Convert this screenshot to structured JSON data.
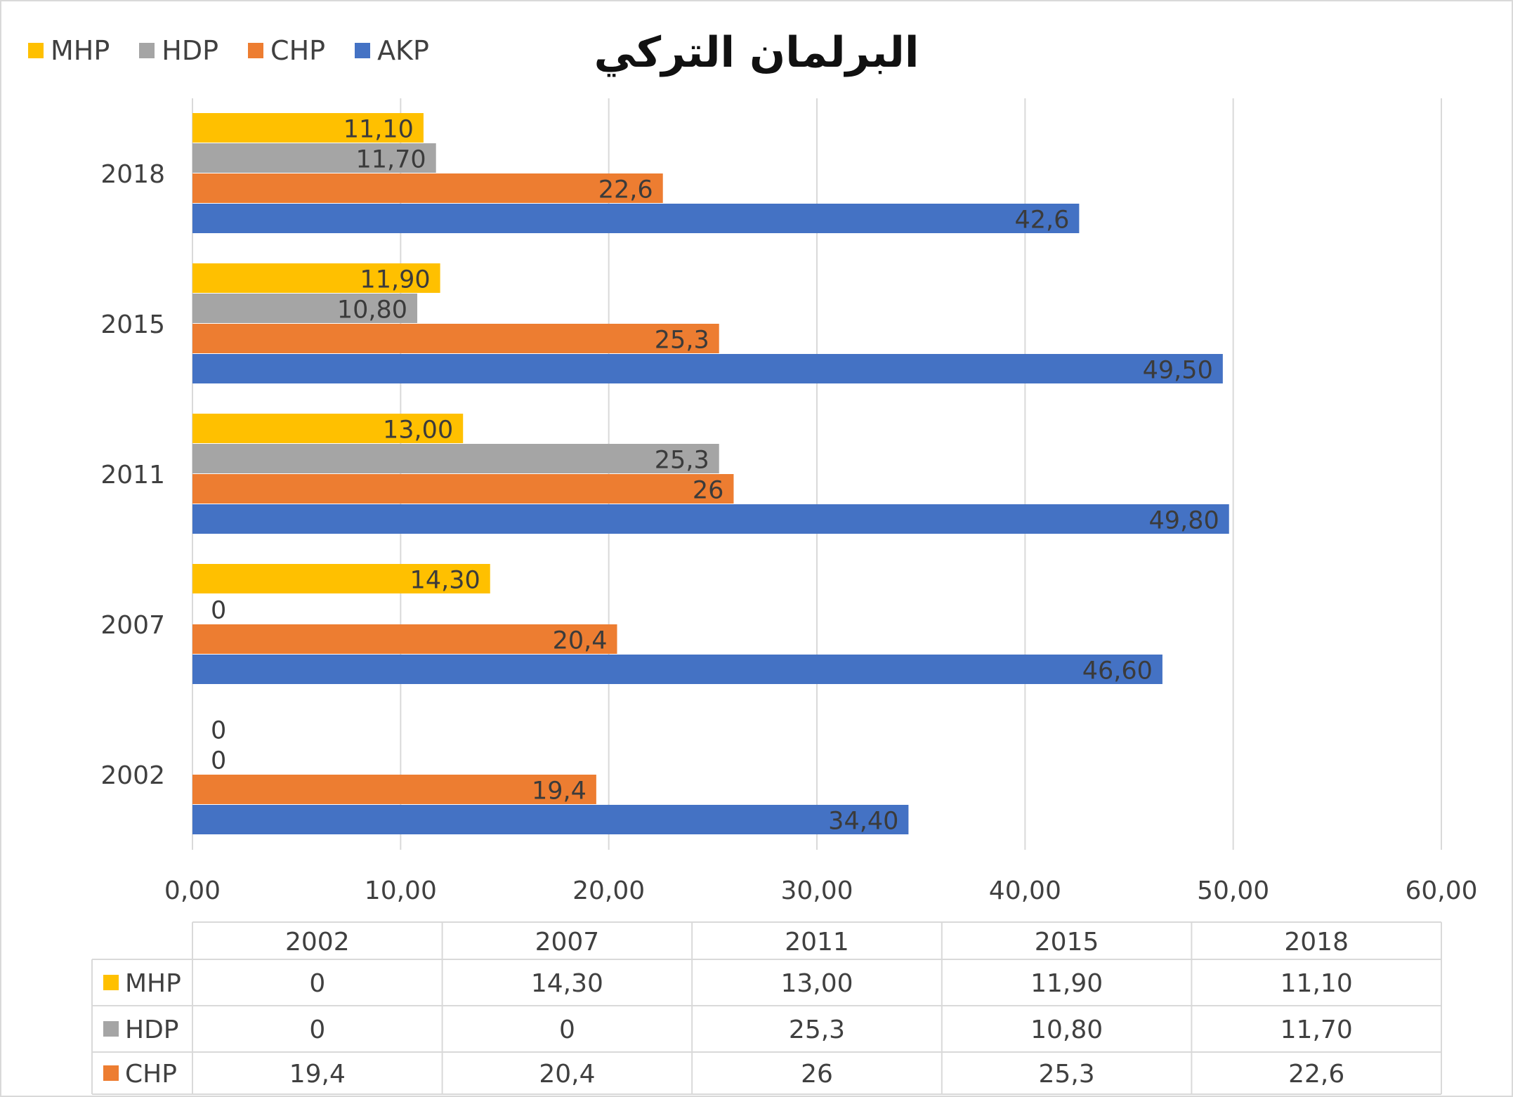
{
  "chart_data": {
    "type": "bar",
    "orientation": "horizontal",
    "title": "البرلمان التركي",
    "categories": [
      "2002",
      "2007",
      "2011",
      "2015",
      "2018"
    ],
    "series": [
      {
        "name": "AKP",
        "color": "#4472c4",
        "values": [
          34.4,
          46.6,
          49.8,
          49.5,
          42.6
        ],
        "labels": [
          "34,40",
          "46,60",
          "49,80",
          "49,50",
          "42,6"
        ]
      },
      {
        "name": "CHP",
        "color": "#ed7d31",
        "values": [
          19.4,
          20.4,
          26,
          25.3,
          22.6
        ],
        "labels": [
          "19,4",
          "20,4",
          "26",
          "25,3",
          "22,6"
        ]
      },
      {
        "name": "HDP",
        "color": "#a5a5a5",
        "values": [
          0,
          0,
          25.3,
          10.8,
          11.7
        ],
        "labels": [
          "0",
          "0",
          "25,3",
          "10,80",
          "11,70"
        ]
      },
      {
        "name": "MHP",
        "color": "#ffc000",
        "values": [
          0,
          14.3,
          13.0,
          11.9,
          11.1
        ],
        "labels": [
          "0",
          "14,30",
          "13,00",
          "11,90",
          "11,10"
        ]
      }
    ],
    "xlim": [
      0,
      60
    ],
    "x_ticks": [
      "0,00",
      "10,00",
      "20,00",
      "30,00",
      "40,00",
      "50,00",
      "60,00"
    ],
    "grid": true,
    "legend_position": "top-left",
    "data_table": {
      "header": [
        "2002",
        "2007",
        "2011",
        "2015",
        "2018"
      ],
      "rows": [
        {
          "name": "MHP",
          "color": "#ffc000",
          "cells": [
            "0",
            "14,30",
            "13,00",
            "11,90",
            "11,10"
          ]
        },
        {
          "name": "HDP",
          "color": "#a5a5a5",
          "cells": [
            "0",
            "0",
            "25,3",
            "10,80",
            "11,70"
          ]
        },
        {
          "name": "CHP",
          "color": "#ed7d31",
          "cells": [
            "19,4",
            "20,4",
            "26",
            "25,3",
            "22,6"
          ]
        }
      ]
    }
  }
}
